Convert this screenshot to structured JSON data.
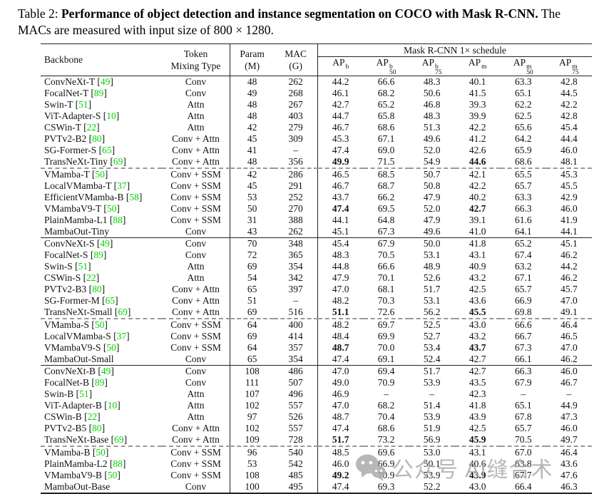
{
  "title": {
    "prefix": "Table 2: ",
    "bold": "Performance of object detection and instance segmentation on COCO with Mask R-CNN.",
    "rest": " The MACs are measured with input size of 800 × 1280."
  },
  "colors": {
    "text": "#111111",
    "citation_green": "#00d400",
    "watermark_gray": "#ababab"
  },
  "table": {
    "headers": {
      "backbone": "Backbone",
      "token_line1": "Token",
      "token_line2": "Mixing Type",
      "param_line1": "Param",
      "param_line2": "(M)",
      "mac_line1": "MAC",
      "mac_line2": "(G)",
      "schedule_group": "Mask R-CNN 1× schedule",
      "ap_columns": [
        {
          "base": "AP",
          "sup": "b",
          "sub": ""
        },
        {
          "base": "AP",
          "sup": "b",
          "sub": "50"
        },
        {
          "base": "AP",
          "sup": "b",
          "sub": "75"
        },
        {
          "base": "AP",
          "sup": "m",
          "sub": ""
        },
        {
          "base": "AP",
          "sup": "m",
          "sub": "50"
        },
        {
          "base": "AP",
          "sup": "m",
          "sub": "75"
        }
      ]
    },
    "groups": [
      {
        "separator_after": "dashed",
        "rows": [
          {
            "backbone": "ConvNeXt-T",
            "cite": "49",
            "mixing": "Conv",
            "param": "48",
            "mac": "262",
            "ap": [
              "44.2",
              "66.6",
              "48.3",
              "40.1",
              "63.3",
              "42.8"
            ],
            "bold": []
          },
          {
            "backbone": "FocalNet-T",
            "cite": "89",
            "mixing": "Conv",
            "param": "49",
            "mac": "268",
            "ap": [
              "46.1",
              "68.2",
              "50.6",
              "41.5",
              "65.1",
              "44.5"
            ],
            "bold": []
          },
          {
            "backbone": "Swin-T",
            "cite": "51",
            "mixing": "Attn",
            "param": "48",
            "mac": "267",
            "ap": [
              "42.7",
              "65.2",
              "46.8",
              "39.3",
              "62.2",
              "42.2"
            ],
            "bold": []
          },
          {
            "backbone": "ViT-Adapter-S",
            "cite": "10",
            "mixing": "Attn",
            "param": "48",
            "mac": "403",
            "ap": [
              "44.7",
              "65.8",
              "48.3",
              "39.9",
              "62.5",
              "42.8"
            ],
            "bold": []
          },
          {
            "backbone": "CSWin-T",
            "cite": "22",
            "mixing": "Attn",
            "param": "42",
            "mac": "279",
            "ap": [
              "46.7",
              "68.6",
              "51.3",
              "42.2",
              "65.6",
              "45.4"
            ],
            "bold": []
          },
          {
            "backbone": "PVTv2-B2",
            "cite": "80",
            "mixing": "Conv + Attn",
            "param": "45",
            "mac": "309",
            "ap": [
              "45.3",
              "67.1",
              "49.6",
              "41.2",
              "64.2",
              "44.4"
            ],
            "bold": []
          },
          {
            "backbone": "SG-Former-S",
            "cite": "65",
            "mixing": "Conv + Attn",
            "param": "41",
            "mac": "–",
            "ap": [
              "47.4",
              "69.0",
              "52.0",
              "42.6",
              "65.9",
              "46.0"
            ],
            "bold": []
          },
          {
            "backbone": "TransNeXt-Tiny",
            "cite": "69",
            "mixing": "Conv + Attn",
            "param": "48",
            "mac": "356",
            "ap": [
              "49.9",
              "71.5",
              "54.9",
              "44.6",
              "68.6",
              "48.1"
            ],
            "bold": [
              0,
              3
            ]
          }
        ]
      },
      {
        "separator_after": "solid",
        "rows": [
          {
            "backbone": "VMamba-T",
            "cite": "50",
            "mixing": "Conv + SSM",
            "param": "42",
            "mac": "286",
            "ap": [
              "46.5",
              "68.5",
              "50.7",
              "42.1",
              "65.5",
              "45.3"
            ],
            "bold": []
          },
          {
            "backbone": "LocalVMamba-T",
            "cite": "37",
            "mixing": "Conv + SSM",
            "param": "45",
            "mac": "291",
            "ap": [
              "46.7",
              "68.7",
              "50.8",
              "42.2",
              "65.7",
              "45.5"
            ],
            "bold": []
          },
          {
            "backbone": "EfficientVMamba-B",
            "cite": "58",
            "mixing": "Conv + SSM",
            "param": "53",
            "mac": "252",
            "ap": [
              "43.7",
              "66.2",
              "47.9",
              "40.2",
              "63.3",
              "42.9"
            ],
            "bold": []
          },
          {
            "backbone": "VMambaV9-T",
            "cite": "50",
            "mixing": "Conv + SSM",
            "param": "50",
            "mac": "270",
            "ap": [
              "47.4",
              "69.5",
              "52.0",
              "42.7",
              "66.3",
              "46.0"
            ],
            "bold": [
              0,
              3
            ]
          },
          {
            "backbone": "PlainMamba-L1",
            "cite": "88",
            "mixing": "Conv + SSM",
            "param": "31",
            "mac": "388",
            "ap": [
              "44.1",
              "64.8",
              "47.9",
              "39.1",
              "61.6",
              "41.9"
            ],
            "bold": []
          },
          {
            "backbone": "MambaOut-Tiny",
            "cite": "",
            "mixing": "Conv",
            "param": "43",
            "mac": "262",
            "ap": [
              "45.1",
              "67.3",
              "49.6",
              "41.0",
              "64.1",
              "44.1"
            ],
            "bold": []
          }
        ]
      },
      {
        "separator_after": "dashed",
        "rows": [
          {
            "backbone": "ConvNeXt-S",
            "cite": "49",
            "mixing": "Conv",
            "param": "70",
            "mac": "348",
            "ap": [
              "45.4",
              "67.9",
              "50.0",
              "41.8",
              "65.2",
              "45.1"
            ],
            "bold": []
          },
          {
            "backbone": "FocalNet-S",
            "cite": "89",
            "mixing": "Conv",
            "param": "72",
            "mac": "365",
            "ap": [
              "48.3",
              "70.5",
              "53.1",
              "43.1",
              "67.4",
              "46.2"
            ],
            "bold": []
          },
          {
            "backbone": "Swin-S",
            "cite": "51",
            "mixing": "Attn",
            "param": "69",
            "mac": "354",
            "ap": [
              "44.8",
              "66.6",
              "48.9",
              "40.9",
              "63.2",
              "44.2"
            ],
            "bold": []
          },
          {
            "backbone": "CSWin-S",
            "cite": "22",
            "mixing": "Attn",
            "param": "54",
            "mac": "342",
            "ap": [
              "47.9",
              "70.1",
              "52.6",
              "43.2",
              "67.1",
              "46.2"
            ],
            "bold": []
          },
          {
            "backbone": "PVTv2-B3",
            "cite": "80",
            "mixing": "Conv + Attn",
            "param": "65",
            "mac": "397",
            "ap": [
              "47.0",
              "68.1",
              "51.7",
              "42.5",
              "65.7",
              "45.7"
            ],
            "bold": []
          },
          {
            "backbone": "SG-Former-M",
            "cite": "65",
            "mixing": "Conv + Attn",
            "param": "51",
            "mac": "–",
            "ap": [
              "48.2",
              "70.3",
              "53.1",
              "43.6",
              "66.9",
              "47.0"
            ],
            "bold": []
          },
          {
            "backbone": "TransNeXt-Small",
            "cite": "69",
            "mixing": "Conv + Attn",
            "param": "69",
            "mac": "516",
            "ap": [
              "51.1",
              "72.6",
              "56.2",
              "45.5",
              "69.8",
              "49.1"
            ],
            "bold": [
              0,
              3
            ]
          }
        ]
      },
      {
        "separator_after": "solid",
        "rows": [
          {
            "backbone": "VMamba-S",
            "cite": "50",
            "mixing": "Conv + SSM",
            "param": "64",
            "mac": "400",
            "ap": [
              "48.2",
              "69.7",
              "52.5",
              "43.0",
              "66.6",
              "46.4"
            ],
            "bold": []
          },
          {
            "backbone": "LocalVMamba-S",
            "cite": "37",
            "mixing": "Conv + SSM",
            "param": "69",
            "mac": "414",
            "ap": [
              "48.4",
              "69.9",
              "52.7",
              "43.2",
              "66.7",
              "46.5"
            ],
            "bold": []
          },
          {
            "backbone": "VMambaV9-S",
            "cite": "50",
            "mixing": "Conv + SSM",
            "param": "64",
            "mac": "357",
            "ap": [
              "48.7",
              "70.0",
              "53.4",
              "43.7",
              "67.3",
              "47.0"
            ],
            "bold": [
              0,
              3
            ]
          },
          {
            "backbone": "MambaOut-Small",
            "cite": "",
            "mixing": "Conv",
            "param": "65",
            "mac": "354",
            "ap": [
              "47.4",
              "69.1",
              "52.4",
              "42.7",
              "66.1",
              "46.2"
            ],
            "bold": []
          }
        ]
      },
      {
        "separator_after": "dashed",
        "rows": [
          {
            "backbone": "ConvNeXt-B",
            "cite": "49",
            "mixing": "Conv",
            "param": "108",
            "mac": "486",
            "ap": [
              "47.0",
              "69.4",
              "51.7",
              "42.7",
              "66.3",
              "46.0"
            ],
            "bold": []
          },
          {
            "backbone": "FocalNet-B",
            "cite": "89",
            "mixing": "Conv",
            "param": "111",
            "mac": "507",
            "ap": [
              "49.0",
              "70.9",
              "53.9",
              "43.5",
              "67.9",
              "46.7"
            ],
            "bold": []
          },
          {
            "backbone": "Swin-B",
            "cite": "51",
            "mixing": "Attn",
            "param": "107",
            "mac": "496",
            "ap": [
              "46.9",
              "–",
              "–",
              "42.3",
              "–",
              "–"
            ],
            "bold": []
          },
          {
            "backbone": "ViT-Adapter-B",
            "cite": "10",
            "mixing": "Attn",
            "param": "102",
            "mac": "557",
            "ap": [
              "47.0",
              "68.2",
              "51.4",
              "41.8",
              "65.1",
              "44.9"
            ],
            "bold": []
          },
          {
            "backbone": "CSWin-B",
            "cite": "22",
            "mixing": "Attn",
            "param": "97",
            "mac": "526",
            "ap": [
              "48.7",
              "70.4",
              "53.9",
              "43.9",
              "67.8",
              "47.3"
            ],
            "bold": []
          },
          {
            "backbone": "PVTv2-B5",
            "cite": "80",
            "mixing": "Conv + Attn",
            "param": "102",
            "mac": "557",
            "ap": [
              "47.4",
              "68.6",
              "51.9",
              "42.5",
              "65.7",
              "46.0"
            ],
            "bold": []
          },
          {
            "backbone": "TransNeXt-Base",
            "cite": "69",
            "mixing": "Conv + Attn",
            "param": "109",
            "mac": "728",
            "ap": [
              "51.7",
              "73.2",
              "56.9",
              "45.9",
              "70.5",
              "49.7"
            ],
            "bold": [
              0,
              3
            ]
          }
        ]
      },
      {
        "separator_after": "none",
        "rows": [
          {
            "backbone": "VMamba-B",
            "cite": "50",
            "mixing": "Conv + SSM",
            "param": "96",
            "mac": "540",
            "ap": [
              "48.5",
              "69.6",
              "53.0",
              "43.1",
              "67.0",
              "46.4"
            ],
            "bold": []
          },
          {
            "backbone": "PlainMamba-L2",
            "cite": "88",
            "mixing": "Conv + SSM",
            "param": "53",
            "mac": "542",
            "ap": [
              "46.0",
              "66.9",
              "50.1",
              "40.6",
              "63.8",
              "43.6"
            ],
            "bold": []
          },
          {
            "backbone": "VMambaV9-B",
            "cite": "50",
            "mixing": "Conv + SSM",
            "param": "108",
            "mac": "485",
            "ap": [
              "49.2",
              "70.9",
              "53.9",
              "43.9",
              "67.7",
              "47.6"
            ],
            "bold": [
              0,
              3
            ]
          },
          {
            "backbone": "MambaOut-Base",
            "cite": "",
            "mixing": "Conv",
            "param": "100",
            "mac": "495",
            "ap": [
              "47.4",
              "69.3",
              "52.2",
              "43.0",
              "66.4",
              "46.3"
            ],
            "bold": []
          }
        ]
      }
    ]
  },
  "watermark": {
    "icon": "wechat-icon",
    "text": "公众号 AI缝合术"
  }
}
